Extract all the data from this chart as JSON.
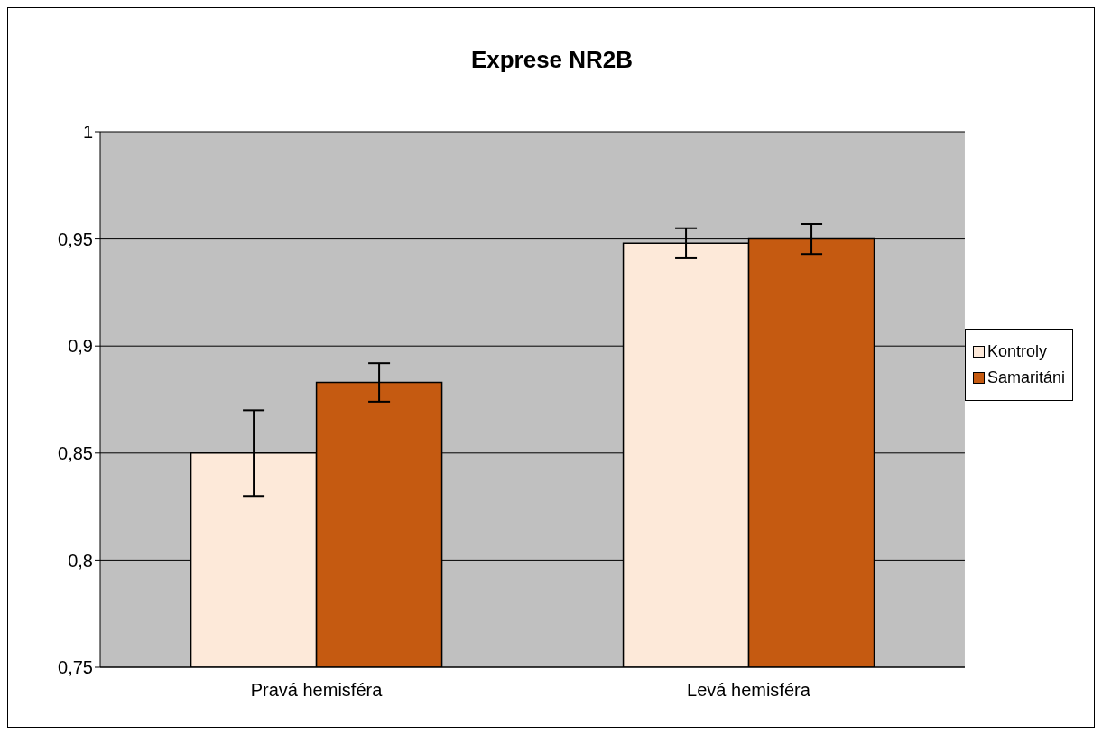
{
  "chart_data": {
    "type": "bar",
    "title": "Exprese NR2B",
    "categories": [
      "Pravá hemisféra",
      "Levá hemisféra"
    ],
    "series": [
      {
        "name": "Kontroly",
        "color": "#fde9d9",
        "values": [
          0.85,
          0.948
        ],
        "errors": [
          0.02,
          0.007
        ]
      },
      {
        "name": "Samaritáni",
        "color": "#c55a11",
        "values": [
          0.883,
          0.95
        ],
        "errors": [
          0.009,
          0.007
        ]
      }
    ],
    "ylim": [
      0.75,
      1
    ],
    "yticks": [
      {
        "value": 0.75,
        "label": "0,75"
      },
      {
        "value": 0.8,
        "label": "0,8"
      },
      {
        "value": 0.85,
        "label": "0,85"
      },
      {
        "value": 0.9,
        "label": "0,9"
      },
      {
        "value": 0.95,
        "label": "0,95"
      },
      {
        "value": 1,
        "label": "1"
      }
    ],
    "grid": "y",
    "legend": "right"
  }
}
